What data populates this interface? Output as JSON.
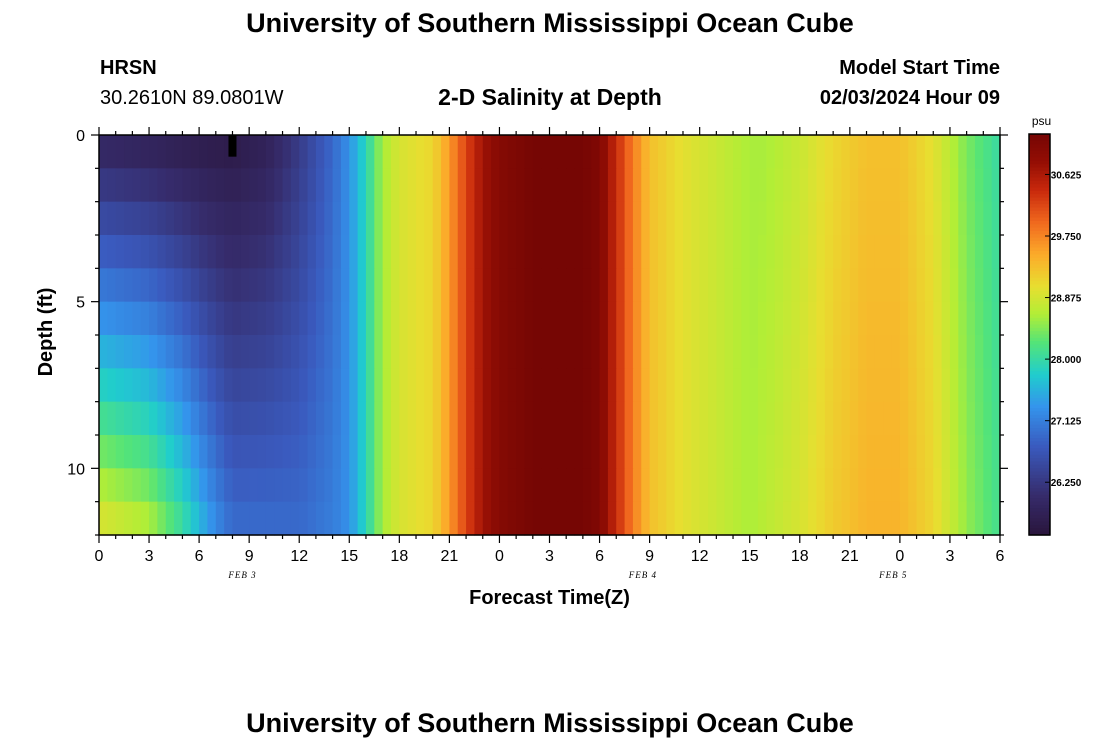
{
  "header": {
    "title": "University of Southern Mississippi Ocean Cube",
    "station_code": "HRSN",
    "coordinates": "30.2610N  89.0801W",
    "chart_title": "2-D Salinity at Depth",
    "start_label": "Model Start Time",
    "start_value": "02/03/2024 Hour 09"
  },
  "footer": {
    "title": "University of Southern Mississippi Ocean Cube"
  },
  "chart_data": {
    "type": "heatmap",
    "title": "2-D Salinity at Depth",
    "xlabel": "Forecast Time(Z)",
    "ylabel": "Depth (ft)",
    "x_tick_labels": [
      "0",
      "3",
      "6",
      "9",
      "12",
      "15",
      "18",
      "21",
      "0",
      "3",
      "6",
      "9",
      "12",
      "15",
      "18",
      "21",
      "0",
      "3",
      "6"
    ],
    "x_date_labels": [
      {
        "label": "FEB 3",
        "hour_index": 12
      },
      {
        "label": "FEB 4",
        "hour_index": 36
      },
      {
        "label": "FEB 5",
        "hour_index": 51
      }
    ],
    "x_range_hours": [
      0,
      54
    ],
    "y_range_ft": [
      0,
      12
    ],
    "y_ticks": [
      0,
      5,
      10
    ],
    "y_tick_labels": [
      "0",
      "5",
      "10"
    ],
    "depth_levels_ft": [
      0.5,
      1.5,
      2.5,
      3.5,
      4.5,
      5.5,
      6.5,
      7.5,
      8.5,
      9.5,
      10.5,
      11.5
    ],
    "colorbar": {
      "unit": "psu",
      "min": 25.5,
      "max": 31.2,
      "ticks": [
        26.25,
        27.125,
        28.0,
        28.875,
        29.75,
        30.625
      ],
      "tick_labels": [
        "26.250",
        "27.125",
        "28.000",
        "28.875",
        "29.750",
        "30.625"
      ]
    },
    "surface_profile_psu": [
      [
        0,
        26.0
      ],
      [
        3,
        25.9
      ],
      [
        6,
        25.75
      ],
      [
        8,
        25.7
      ],
      [
        10,
        25.85
      ],
      [
        12,
        26.3
      ],
      [
        14,
        26.9
      ],
      [
        15,
        27.3
      ],
      [
        16,
        27.9
      ],
      [
        17,
        28.6
      ],
      [
        18,
        28.9
      ],
      [
        20,
        29.1
      ],
      [
        21,
        29.6
      ],
      [
        22,
        30.2
      ],
      [
        23,
        30.7
      ],
      [
        24,
        31.0
      ],
      [
        26,
        31.2
      ],
      [
        29,
        31.2
      ],
      [
        30,
        31.05
      ],
      [
        31,
        30.4
      ],
      [
        32,
        29.8
      ],
      [
        33,
        29.3
      ],
      [
        35,
        29.0
      ],
      [
        37,
        28.8
      ],
      [
        39,
        28.6
      ],
      [
        40,
        28.6
      ],
      [
        42,
        28.8
      ],
      [
        44,
        29.1
      ],
      [
        46,
        29.3
      ],
      [
        48,
        29.3
      ],
      [
        50,
        29.0
      ],
      [
        52,
        28.4
      ],
      [
        54,
        28.0
      ]
    ],
    "deep_profile_psu": [
      [
        0,
        28.9
      ],
      [
        3,
        28.6
      ],
      [
        5,
        28.0
      ],
      [
        7,
        27.2
      ],
      [
        8,
        26.9
      ],
      [
        10,
        26.9
      ],
      [
        12,
        26.9
      ],
      [
        14,
        27.1
      ],
      [
        15,
        27.3
      ],
      [
        16,
        27.9
      ],
      [
        17,
        28.6
      ],
      [
        18,
        28.9
      ],
      [
        20,
        29.1
      ],
      [
        21,
        29.6
      ],
      [
        22,
        30.2
      ],
      [
        23,
        30.7
      ],
      [
        24,
        31.0
      ],
      [
        26,
        31.2
      ],
      [
        29,
        31.2
      ],
      [
        30,
        31.05
      ],
      [
        31,
        30.4
      ],
      [
        32,
        29.8
      ],
      [
        33,
        29.3
      ],
      [
        35,
        29.0
      ],
      [
        37,
        28.8
      ],
      [
        39,
        28.6
      ],
      [
        40,
        28.7
      ],
      [
        42,
        28.9
      ],
      [
        44,
        29.2
      ],
      [
        46,
        29.4
      ],
      [
        48,
        29.4
      ],
      [
        50,
        29.1
      ],
      [
        52,
        28.5
      ],
      [
        54,
        28.1
      ]
    ],
    "marker": {
      "hour": 8,
      "depth_ft_from": 0,
      "depth_ft_to": 0.5
    }
  }
}
